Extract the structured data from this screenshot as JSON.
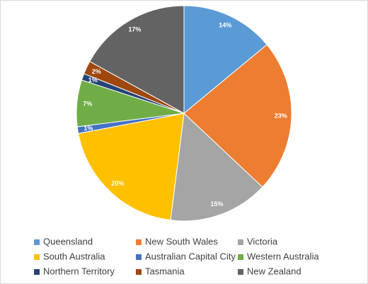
{
  "chart_data": {
    "type": "pie",
    "categories": [
      "Queensland",
      "New South Wales",
      "Victoria",
      "South Australia",
      "Australian Capital City",
      "Western Australia",
      "Northern Territory",
      "Tasmania",
      "New Zealand"
    ],
    "values": [
      14,
      23,
      15,
      20,
      1,
      7,
      1,
      2,
      17
    ],
    "value_labels": [
      "14%",
      "23%",
      "15%",
      "20%",
      "1%",
      "7%",
      "1%",
      "2%",
      "17%"
    ],
    "colors": [
      "#5b9bd5",
      "#ed7d31",
      "#a5a5a5",
      "#ffc000",
      "#4472c4",
      "#70ad47",
      "#264478",
      "#9e480e",
      "#636363"
    ]
  }
}
